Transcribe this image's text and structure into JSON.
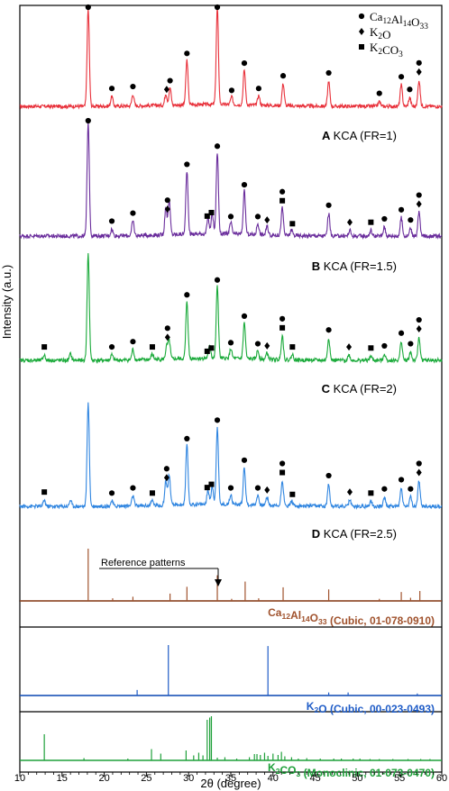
{
  "chart_data": {
    "type": "line",
    "xlabel": "2θ (degree)",
    "ylabel": "Intensity (a.u.)",
    "xlim": [
      10,
      60
    ],
    "x_ticks": [
      10,
      15,
      20,
      25,
      30,
      35,
      40,
      45,
      50,
      55,
      60
    ],
    "legend": {
      "placement": "top-right",
      "items": [
        {
          "marker": "circle",
          "label": "Ca12Al14O33"
        },
        {
          "marker": "diamond",
          "label": "K2O"
        },
        {
          "marker": "square",
          "label": "K2CO3"
        }
      ]
    },
    "series": [
      {
        "name": "KCA (FR=1)",
        "letter": "A",
        "color": "#e8303a",
        "baseline": 0.1,
        "peaks": [
          [
            18.1,
            1.0
          ],
          [
            20.9,
            0.1
          ],
          [
            23.4,
            0.12
          ],
          [
            27.3,
            0.12
          ],
          [
            27.8,
            0.18
          ],
          [
            29.8,
            0.46
          ],
          [
            33.4,
            1.0
          ],
          [
            35.1,
            0.08
          ],
          [
            36.6,
            0.36
          ],
          [
            38.3,
            0.1
          ],
          [
            41.2,
            0.23
          ],
          [
            46.6,
            0.26
          ],
          [
            52.6,
            0.05
          ],
          [
            55.2,
            0.22
          ],
          [
            56.2,
            0.09
          ],
          [
            57.3,
            0.27
          ]
        ],
        "markers": [
          [
            "circle",
            18.1
          ],
          [
            "circle",
            20.9
          ],
          [
            "circle",
            23.4
          ],
          [
            "diamond",
            27.4
          ],
          [
            "circle",
            27.8
          ],
          [
            "circle",
            29.8
          ],
          [
            "circle",
            33.4
          ],
          [
            "circle",
            35.1
          ],
          [
            "circle",
            36.6
          ],
          [
            "circle",
            38.3
          ],
          [
            "circle",
            41.2
          ],
          [
            "circle",
            46.6
          ],
          [
            "circle",
            52.6
          ],
          [
            "circle",
            55.2
          ],
          [
            "circle",
            56.2
          ],
          [
            "diamond",
            57.3
          ],
          [
            "circle",
            57.3
          ]
        ]
      },
      {
        "name": "KCA (FR=1.5)",
        "letter": "B",
        "color": "#6a2d9c",
        "baseline": 0.1,
        "peaks": [
          [
            18.1,
            1.0
          ],
          [
            20.9,
            0.06
          ],
          [
            23.4,
            0.13
          ],
          [
            27.3,
            0.24
          ],
          [
            27.7,
            0.3
          ],
          [
            29.8,
            0.56
          ],
          [
            32.3,
            0.14
          ],
          [
            32.8,
            0.18
          ],
          [
            33.4,
            0.72
          ],
          [
            35.0,
            0.1
          ],
          [
            36.6,
            0.38
          ],
          [
            38.2,
            0.1
          ],
          [
            39.3,
            0.07
          ],
          [
            41.1,
            0.24
          ],
          [
            42.2,
            0.05
          ],
          [
            46.6,
            0.2
          ],
          [
            49.1,
            0.05
          ],
          [
            51.6,
            0.05
          ],
          [
            53.2,
            0.08
          ],
          [
            55.2,
            0.16
          ],
          [
            56.3,
            0.07
          ],
          [
            57.3,
            0.21
          ]
        ],
        "markers": [
          [
            "circle",
            18.1
          ],
          [
            "circle",
            20.9
          ],
          [
            "circle",
            23.4
          ],
          [
            "diamond",
            27.5
          ],
          [
            "circle",
            27.5
          ],
          [
            "circle",
            29.8
          ],
          [
            "square",
            32.2
          ],
          [
            "square",
            32.7
          ],
          [
            "circle",
            33.4
          ],
          [
            "circle",
            35.0
          ],
          [
            "circle",
            36.6
          ],
          [
            "circle",
            38.2
          ],
          [
            "diamond",
            39.3
          ],
          [
            "square",
            41.1
          ],
          [
            "circle",
            41.1
          ],
          [
            "square",
            42.3
          ],
          [
            "circle",
            46.6
          ],
          [
            "diamond",
            49.1
          ],
          [
            "square",
            51.6
          ],
          [
            "circle",
            53.2
          ],
          [
            "circle",
            55.2
          ],
          [
            "circle",
            56.3
          ],
          [
            "diamond",
            57.3
          ],
          [
            "circle",
            57.3
          ]
        ]
      },
      {
        "name": "KCA (FR=2)",
        "letter": "C",
        "color": "#1aaa3a",
        "baseline": 0.1,
        "peaks": [
          [
            12.9,
            0.05
          ],
          [
            16.0,
            0.06
          ],
          [
            18.1,
            1.0
          ],
          [
            20.9,
            0.05
          ],
          [
            23.4,
            0.1
          ],
          [
            25.7,
            0.05
          ],
          [
            27.4,
            0.12
          ],
          [
            27.7,
            0.17
          ],
          [
            29.8,
            0.54
          ],
          [
            32.5,
            0.13
          ],
          [
            33.4,
            0.68
          ],
          [
            35.0,
            0.09
          ],
          [
            36.6,
            0.34
          ],
          [
            38.2,
            0.08
          ],
          [
            39.3,
            0.06
          ],
          [
            41.1,
            0.23
          ],
          [
            42.3,
            0.05
          ],
          [
            46.6,
            0.21
          ],
          [
            49.0,
            0.05
          ],
          [
            51.6,
            0.04
          ],
          [
            53.2,
            0.06
          ],
          [
            55.2,
            0.18
          ],
          [
            56.3,
            0.08
          ],
          [
            57.3,
            0.22
          ]
        ],
        "markers": [
          [
            "square",
            12.9
          ],
          [
            "circle",
            20.9
          ],
          [
            "circle",
            23.4
          ],
          [
            "square",
            25.7
          ],
          [
            "diamond",
            27.5
          ],
          [
            "circle",
            27.5
          ],
          [
            "circle",
            29.8
          ],
          [
            "square",
            32.2
          ],
          [
            "square",
            32.7
          ],
          [
            "circle",
            33.4
          ],
          [
            "circle",
            35.0
          ],
          [
            "circle",
            36.6
          ],
          [
            "circle",
            38.2
          ],
          [
            "diamond",
            39.3
          ],
          [
            "square",
            41.1
          ],
          [
            "circle",
            41.1
          ],
          [
            "square",
            42.3
          ],
          [
            "circle",
            46.6
          ],
          [
            "diamond",
            49.0
          ],
          [
            "square",
            51.6
          ],
          [
            "circle",
            53.2
          ],
          [
            "circle",
            55.2
          ],
          [
            "circle",
            56.3
          ],
          [
            "diamond",
            57.3
          ],
          [
            "circle",
            57.3
          ]
        ]
      },
      {
        "name": "KCA (FR=2.5)",
        "letter": "D",
        "color": "#2f85e0",
        "baseline": 0.1,
        "peaks": [
          [
            12.9,
            0.06
          ],
          [
            16.0,
            0.06
          ],
          [
            18.1,
            1.0
          ],
          [
            20.9,
            0.05
          ],
          [
            23.4,
            0.1
          ],
          [
            25.7,
            0.05
          ],
          [
            27.3,
            0.24
          ],
          [
            27.7,
            0.3
          ],
          [
            29.8,
            0.58
          ],
          [
            32.3,
            0.14
          ],
          [
            32.8,
            0.18
          ],
          [
            33.4,
            0.76
          ],
          [
            35.0,
            0.1
          ],
          [
            36.6,
            0.37
          ],
          [
            38.2,
            0.1
          ],
          [
            39.3,
            0.08
          ],
          [
            41.1,
            0.25
          ],
          [
            42.2,
            0.05
          ],
          [
            46.6,
            0.22
          ],
          [
            49.1,
            0.06
          ],
          [
            51.6,
            0.05
          ],
          [
            53.2,
            0.09
          ],
          [
            55.2,
            0.18
          ],
          [
            56.3,
            0.09
          ],
          [
            57.3,
            0.25
          ]
        ],
        "markers": [
          [
            "square",
            12.9
          ],
          [
            "circle",
            20.9
          ],
          [
            "circle",
            23.4
          ],
          [
            "square",
            25.7
          ],
          [
            "diamond",
            27.4
          ],
          [
            "circle",
            27.4
          ],
          [
            "circle",
            29.8
          ],
          [
            "square",
            32.2
          ],
          [
            "square",
            32.7
          ],
          [
            "circle",
            33.4
          ],
          [
            "circle",
            35.0
          ],
          [
            "circle",
            36.6
          ],
          [
            "circle",
            38.2
          ],
          [
            "diamond",
            39.3
          ],
          [
            "square",
            41.1
          ],
          [
            "circle",
            41.1
          ],
          [
            "square",
            42.3
          ],
          [
            "circle",
            46.6
          ],
          [
            "diamond",
            49.1
          ],
          [
            "square",
            51.6
          ],
          [
            "circle",
            53.2
          ],
          [
            "circle",
            55.2
          ],
          [
            "circle",
            56.3
          ],
          [
            "diamond",
            57.3
          ],
          [
            "circle",
            57.3
          ]
        ]
      }
    ],
    "reference_patterns": [
      {
        "label": "Ca12Al14O33 (Cubic, 01-078-0910)",
        "color": "#a0522d",
        "annotation": "Reference patterns",
        "lines": [
          [
            18.1,
            1.0
          ],
          [
            21.0,
            0.05
          ],
          [
            23.4,
            0.08
          ],
          [
            27.8,
            0.14
          ],
          [
            29.8,
            0.27
          ],
          [
            33.4,
            0.49
          ],
          [
            35.1,
            0.04
          ],
          [
            36.7,
            0.37
          ],
          [
            38.3,
            0.05
          ],
          [
            41.2,
            0.26
          ],
          [
            46.6,
            0.22
          ],
          [
            52.6,
            0.04
          ],
          [
            55.2,
            0.17
          ],
          [
            56.3,
            0.06
          ],
          [
            57.4,
            0.19
          ]
        ]
      },
      {
        "label": "K2O (Cubic, 00-023-0493)",
        "color": "#1f5cc7",
        "lines": [
          [
            23.9,
            0.11
          ],
          [
            27.6,
            1.0
          ],
          [
            39.4,
            0.98
          ],
          [
            46.6,
            0.06
          ],
          [
            48.9,
            0.06
          ],
          [
            57.1,
            0.04
          ]
        ]
      },
      {
        "label": "K2CO3 (Monoclinic, 01-073-0470)",
        "color": "#1fa03a",
        "lines": [
          [
            12.9,
            0.58
          ],
          [
            17.6,
            0.05
          ],
          [
            22.8,
            0.04
          ],
          [
            25.6,
            0.25
          ],
          [
            26.7,
            0.15
          ],
          [
            29.7,
            0.22
          ],
          [
            30.6,
            0.11
          ],
          [
            31.2,
            0.17
          ],
          [
            31.7,
            0.11
          ],
          [
            32.2,
            0.9
          ],
          [
            32.5,
            0.95
          ],
          [
            32.7,
            0.98
          ],
          [
            33.4,
            0.06
          ],
          [
            34.3,
            0.07
          ],
          [
            35.7,
            0.04
          ],
          [
            37.2,
            0.07
          ],
          [
            37.8,
            0.14
          ],
          [
            38.1,
            0.14
          ],
          [
            38.5,
            0.12
          ],
          [
            39.0,
            0.17
          ],
          [
            39.4,
            0.1
          ],
          [
            40.0,
            0.15
          ],
          [
            40.6,
            0.12
          ],
          [
            41.0,
            0.19
          ],
          [
            41.4,
            0.09
          ],
          [
            42.2,
            0.07
          ],
          [
            43.0,
            0.04
          ],
          [
            44.0,
            0.05
          ],
          [
            45.6,
            0.04
          ],
          [
            47.2,
            0.04
          ],
          [
            48.1,
            0.04
          ],
          [
            49.5,
            0.04
          ],
          [
            50.3,
            0.04
          ],
          [
            51.5,
            0.03
          ],
          [
            52.6,
            0.03
          ],
          [
            54.2,
            0.03
          ],
          [
            56.0,
            0.03
          ],
          [
            57.5,
            0.03
          ],
          [
            58.6,
            0.03
          ]
        ]
      }
    ]
  }
}
